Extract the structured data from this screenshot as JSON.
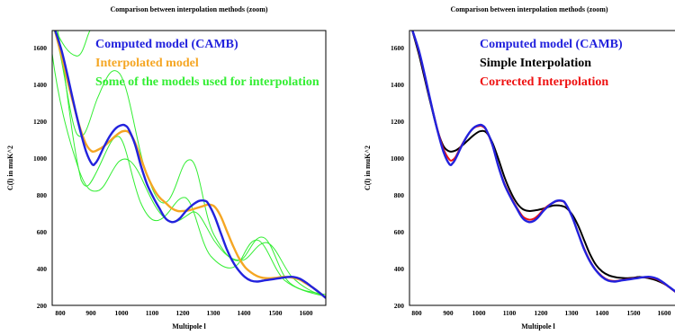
{
  "chart_data": [
    {
      "type": "line",
      "title": "Comparison between interpolation methods (zoom)",
      "xlabel": "Multipole l",
      "ylabel": "C(l) in muK^2",
      "xlim": [
        755,
        1645
      ],
      "ylim": [
        200,
        1700
      ],
      "xticks": [
        "800",
        "900",
        "1000",
        "1100",
        "1200",
        "1300",
        "1400",
        "1500",
        "1600"
      ],
      "yticks": [
        "200",
        "400",
        "600",
        "800",
        "1000",
        "1200",
        "1400",
        "1600"
      ],
      "grid": false,
      "legend_placement": "top-left",
      "series": [
        {
          "name": "Computed model (CAMB)",
          "color": "#2222dd",
          "x": [
            755,
            780,
            800,
            820,
            840,
            860,
            880,
            890,
            900,
            920,
            940,
            960,
            980,
            990,
            1000,
            1020,
            1040,
            1060,
            1080,
            1100,
            1120,
            1140,
            1155,
            1170,
            1190,
            1210,
            1230,
            1250,
            1260,
            1280,
            1300,
            1320,
            1340,
            1360,
            1380,
            1400,
            1420,
            1440,
            1460,
            1480,
            1500,
            1520,
            1540,
            1560,
            1580,
            1600,
            1620,
            1645
          ],
          "y": [
            1720,
            1590,
            1450,
            1300,
            1160,
            1040,
            970,
            975,
            1000,
            1070,
            1130,
            1170,
            1185,
            1180,
            1160,
            1080,
            960,
            860,
            790,
            730,
            675,
            655,
            660,
            680,
            720,
            750,
            770,
            770,
            755,
            690,
            600,
            510,
            440,
            390,
            355,
            335,
            330,
            335,
            340,
            345,
            350,
            355,
            355,
            345,
            325,
            300,
            275,
            240
          ]
        },
        {
          "name": "Interpolated model",
          "color": "#f5a623",
          "x": [
            755,
            780,
            800,
            820,
            840,
            860,
            880,
            900,
            920,
            940,
            960,
            980,
            1000,
            1020,
            1040,
            1060,
            1080,
            1100,
            1120,
            1140,
            1160,
            1180,
            1200,
            1220,
            1240,
            1260,
            1280,
            1300,
            1320,
            1340,
            1360,
            1380,
            1400,
            1420,
            1440,
            1460,
            1480,
            1500,
            1520,
            1540,
            1560,
            1580,
            1600,
            1620,
            1645
          ],
          "y": [
            1720,
            1560,
            1420,
            1290,
            1170,
            1080,
            1040,
            1050,
            1070,
            1100,
            1130,
            1150,
            1145,
            1090,
            1000,
            910,
            840,
            790,
            760,
            730,
            715,
            715,
            720,
            730,
            740,
            750,
            740,
            690,
            610,
            530,
            460,
            410,
            380,
            360,
            350,
            348,
            350,
            355,
            355,
            350,
            340,
            320,
            300,
            275,
            240
          ]
        },
        {
          "name": "Some of the models used for interpolation",
          "color": "#33ee33",
          "line_count": 4
        }
      ]
    },
    {
      "type": "line",
      "title": "Comparison between interpolation methods (zoom)",
      "xlabel": "Multipole l",
      "ylabel": "C(l) in muK^2",
      "xlim": [
        755,
        1645
      ],
      "ylim": [
        200,
        1700
      ],
      "xticks": [
        "800",
        "900",
        "1000",
        "1100",
        "1200",
        "1300",
        "1400",
        "1500",
        "1600"
      ],
      "yticks": [
        "200",
        "400",
        "600",
        "800",
        "1000",
        "1200",
        "1400",
        "1600"
      ],
      "grid": false,
      "legend_placement": "top-left",
      "series": [
        {
          "name": "Computed model (CAMB)",
          "color": "#2222dd",
          "x": [
            755,
            780,
            800,
            820,
            840,
            860,
            880,
            890,
            900,
            920,
            940,
            960,
            980,
            990,
            1000,
            1020,
            1040,
            1060,
            1080,
            1100,
            1120,
            1140,
            1155,
            1170,
            1190,
            1210,
            1230,
            1250,
            1260,
            1280,
            1300,
            1320,
            1340,
            1360,
            1380,
            1400,
            1420,
            1440,
            1460,
            1480,
            1500,
            1520,
            1540,
            1560,
            1580,
            1600,
            1620,
            1645
          ],
          "y": [
            1720,
            1590,
            1450,
            1300,
            1160,
            1040,
            970,
            975,
            1000,
            1070,
            1130,
            1170,
            1185,
            1180,
            1160,
            1080,
            960,
            860,
            790,
            730,
            675,
            655,
            660,
            680,
            720,
            750,
            770,
            770,
            755,
            690,
            600,
            510,
            440,
            390,
            355,
            335,
            330,
            335,
            340,
            345,
            350,
            355,
            355,
            345,
            325,
            300,
            275,
            240
          ]
        },
        {
          "name": "Simple Interpolation",
          "color": "#000000",
          "x": [
            755,
            780,
            800,
            820,
            840,
            860,
            880,
            900,
            920,
            940,
            960,
            980,
            1000,
            1020,
            1040,
            1060,
            1080,
            1100,
            1120,
            1140,
            1160,
            1180,
            1200,
            1220,
            1240,
            1260,
            1280,
            1300,
            1320,
            1340,
            1360,
            1380,
            1400,
            1420,
            1440,
            1460,
            1480,
            1500,
            1520,
            1540,
            1560,
            1580,
            1600,
            1620,
            1645
          ],
          "y": [
            1720,
            1570,
            1430,
            1290,
            1160,
            1070,
            1040,
            1045,
            1070,
            1100,
            1130,
            1150,
            1145,
            1090,
            1000,
            900,
            820,
            760,
            725,
            715,
            718,
            725,
            735,
            745,
            745,
            735,
            700,
            640,
            560,
            480,
            420,
            385,
            365,
            355,
            350,
            348,
            350,
            355,
            352,
            345,
            335,
            320,
            300,
            275,
            245
          ]
        },
        {
          "name": "Corrected Interpolation",
          "color": "#ee1111",
          "x": [
            755,
            780,
            800,
            820,
            840,
            860,
            880,
            890,
            900,
            920,
            940,
            960,
            980,
            990,
            1000,
            1020,
            1040,
            1060,
            1080,
            1100,
            1120,
            1140,
            1155,
            1170,
            1190,
            1210,
            1230,
            1250,
            1260,
            1280,
            1300,
            1320,
            1340,
            1360,
            1380,
            1400,
            1420,
            1440,
            1460,
            1480,
            1500,
            1520,
            1540,
            1560,
            1580,
            1600,
            1620,
            1645
          ],
          "y": [
            1720,
            1585,
            1445,
            1300,
            1165,
            1055,
            995,
            993,
            1010,
            1075,
            1130,
            1168,
            1180,
            1175,
            1157,
            1078,
            962,
            865,
            795,
            735,
            685,
            668,
            672,
            690,
            726,
            752,
            768,
            768,
            752,
            690,
            602,
            514,
            444,
            392,
            358,
            338,
            333,
            337,
            342,
            347,
            351,
            354,
            352,
            342,
            322,
            298,
            273,
            240
          ]
        }
      ]
    }
  ]
}
